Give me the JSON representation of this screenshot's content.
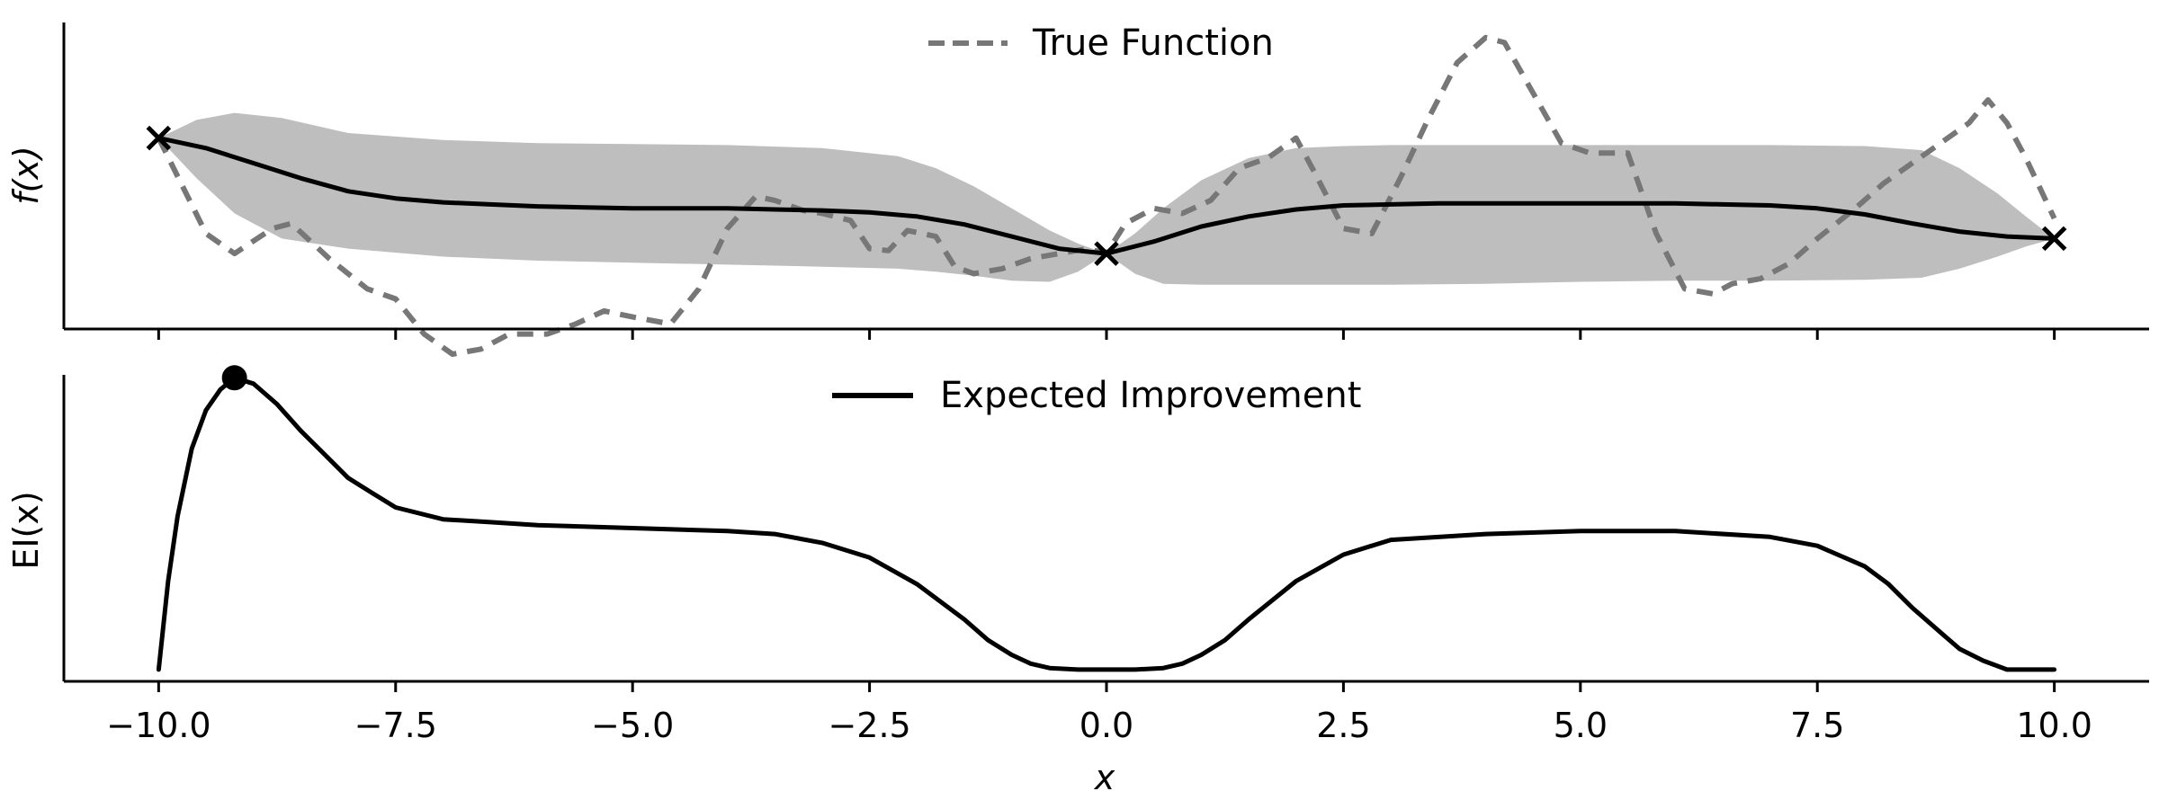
{
  "chart_data": [
    {
      "type": "line",
      "panel": "top",
      "ylabel": "f(x)",
      "xlim": [
        -11.0,
        11.0
      ],
      "ylim": [
        -1.9,
        1.15
      ],
      "xticks": [
        -10.0,
        -7.5,
        -5.0,
        -2.5,
        0.0,
        2.5,
        5.0,
        7.5,
        10.0
      ],
      "xtick_labels_shown": false,
      "yticks_shown": false,
      "legend": {
        "position": "top-center",
        "entries": [
          "True Function"
        ]
      },
      "series": [
        {
          "name": "True Function",
          "style": "dashed",
          "color": "#777777",
          "x": [
            -10.0,
            -9.5,
            -9.2,
            -8.8,
            -8.6,
            -8.2,
            -7.8,
            -7.5,
            -7.2,
            -6.9,
            -6.6,
            -6.3,
            -5.9,
            -5.6,
            -5.3,
            -5.0,
            -4.6,
            -4.3,
            -4.0,
            -3.7,
            -3.5,
            -3.2,
            -3.0,
            -2.7,
            -2.5,
            -2.3,
            -2.1,
            -1.8,
            -1.6,
            -1.4,
            -1.1,
            -0.8,
            -0.5,
            -0.2,
            0.0,
            0.2,
            0.5,
            0.8,
            1.1,
            1.4,
            1.7,
            2.0,
            2.2,
            2.5,
            2.8,
            3.1,
            3.4,
            3.7,
            4.0,
            4.2,
            4.5,
            4.8,
            5.1,
            5.5,
            5.8,
            6.1,
            6.4,
            6.6,
            6.9,
            7.2,
            7.5,
            7.9,
            8.2,
            8.5,
            8.8,
            9.1,
            9.3,
            9.5,
            9.7,
            10.0
          ],
          "y": [
            0.0,
            -0.95,
            -1.15,
            -0.9,
            -0.85,
            -1.2,
            -1.5,
            -1.6,
            -1.95,
            -2.15,
            -2.1,
            -1.95,
            -1.95,
            -1.85,
            -1.72,
            -1.78,
            -1.85,
            -1.5,
            -0.9,
            -0.58,
            -0.62,
            -0.72,
            -0.75,
            -0.82,
            -1.1,
            -1.12,
            -0.92,
            -0.98,
            -1.28,
            -1.35,
            -1.3,
            -1.2,
            -1.15,
            -1.1,
            -1.15,
            -0.85,
            -0.7,
            -0.75,
            -0.62,
            -0.3,
            -0.2,
            0.0,
            -0.35,
            -0.9,
            -0.95,
            -0.4,
            0.2,
            0.75,
            1.0,
            0.95,
            0.45,
            -0.05,
            -0.15,
            -0.15,
            -0.95,
            -1.5,
            -1.55,
            -1.45,
            -1.4,
            -1.25,
            -1.0,
            -0.7,
            -0.45,
            -0.25,
            -0.05,
            0.15,
            0.38,
            0.15,
            -0.2,
            -0.8
          ]
        },
        {
          "name": "",
          "style": "solid",
          "color": "#000000",
          "x": [
            -10.0,
            -9.5,
            -9.0,
            -8.5,
            -8.0,
            -7.5,
            -7.0,
            -6.5,
            -6.0,
            -5.5,
            -5.0,
            -4.5,
            -4.0,
            -3.5,
            -3.0,
            -2.5,
            -2.0,
            -1.5,
            -1.0,
            -0.5,
            0.0,
            0.5,
            1.0,
            1.5,
            2.0,
            2.5,
            3.0,
            3.5,
            4.0,
            4.5,
            5.0,
            5.5,
            6.0,
            6.5,
            7.0,
            7.5,
            8.0,
            8.5,
            9.0,
            9.5,
            10.0
          ],
          "y": [
            0.0,
            -0.1,
            -0.25,
            -0.4,
            -0.53,
            -0.6,
            -0.64,
            -0.66,
            -0.68,
            -0.69,
            -0.7,
            -0.7,
            -0.7,
            -0.71,
            -0.72,
            -0.74,
            -0.78,
            -0.86,
            -0.98,
            -1.1,
            -1.15,
            -1.03,
            -0.88,
            -0.78,
            -0.71,
            -0.67,
            -0.66,
            -0.65,
            -0.65,
            -0.65,
            -0.65,
            -0.65,
            -0.65,
            -0.66,
            -0.67,
            -0.7,
            -0.76,
            -0.85,
            -0.93,
            -0.98,
            -1.0
          ]
        }
      ],
      "band": {
        "color": "#bebebe",
        "x": [
          -10.0,
          -9.6,
          -9.2,
          -8.7,
          -8.0,
          -7.0,
          -6.0,
          -5.0,
          -4.0,
          -3.0,
          -2.2,
          -1.8,
          -1.4,
          -1.0,
          -0.6,
          -0.3,
          0.0,
          0.3,
          0.6,
          1.0,
          1.5,
          2.0,
          2.5,
          3.0,
          4.0,
          5.0,
          6.0,
          7.0,
          8.0,
          8.6,
          9.0,
          9.4,
          9.7,
          10.0
        ],
        "upper": [
          0.0,
          0.18,
          0.25,
          0.2,
          0.05,
          -0.02,
          -0.05,
          -0.06,
          -0.07,
          -0.1,
          -0.18,
          -0.3,
          -0.48,
          -0.7,
          -0.92,
          -1.05,
          -1.15,
          -0.95,
          -0.7,
          -0.42,
          -0.2,
          -0.1,
          -0.08,
          -0.07,
          -0.07,
          -0.07,
          -0.07,
          -0.07,
          -0.08,
          -0.12,
          -0.3,
          -0.55,
          -0.78,
          -1.0
        ],
        "lower": [
          0.0,
          -0.4,
          -0.75,
          -1.0,
          -1.1,
          -1.18,
          -1.22,
          -1.24,
          -1.26,
          -1.28,
          -1.3,
          -1.33,
          -1.37,
          -1.42,
          -1.43,
          -1.33,
          -1.15,
          -1.35,
          -1.45,
          -1.46,
          -1.46,
          -1.46,
          -1.46,
          -1.46,
          -1.45,
          -1.43,
          -1.42,
          -1.42,
          -1.41,
          -1.39,
          -1.3,
          -1.18,
          -1.08,
          -1.0
        ]
      },
      "markers": {
        "type": "x",
        "points": [
          [
            -10.0,
            0.0
          ],
          [
            0.0,
            -1.15
          ],
          [
            10.0,
            -1.0
          ]
        ]
      }
    },
    {
      "type": "line",
      "panel": "bottom",
      "xlabel": "x",
      "ylabel": "EI(x)",
      "xlim": [
        -11.0,
        11.0
      ],
      "ylim": [
        -0.04,
        1.0
      ],
      "xticks": [
        -10.0,
        -7.5,
        -5.0,
        -2.5,
        0.0,
        2.5,
        5.0,
        7.5,
        10.0
      ],
      "xtick_labels": [
        "−10.0",
        "−7.5",
        "−5.0",
        "−2.5",
        "0.0",
        "2.5",
        "5.0",
        "7.5",
        "10.0"
      ],
      "yticks_shown": false,
      "legend": {
        "position": "top-center",
        "entries": [
          "Expected Improvement"
        ]
      },
      "series": [
        {
          "name": "Expected Improvement",
          "style": "solid",
          "color": "#000000",
          "x": [
            -10.0,
            -9.9,
            -9.8,
            -9.65,
            -9.5,
            -9.35,
            -9.2,
            -9.0,
            -8.75,
            -8.5,
            -8.25,
            -8.0,
            -7.75,
            -7.5,
            -7.0,
            -6.5,
            -6.0,
            -5.0,
            -4.0,
            -3.5,
            -3.0,
            -2.5,
            -2.0,
            -1.5,
            -1.25,
            -1.0,
            -0.8,
            -0.6,
            -0.3,
            0.0,
            0.3,
            0.6,
            0.8,
            1.0,
            1.25,
            1.5,
            2.0,
            2.5,
            3.0,
            4.0,
            5.0,
            6.0,
            7.0,
            7.5,
            8.0,
            8.25,
            8.5,
            8.75,
            9.0,
            9.25,
            9.5,
            10.0
          ],
          "y": [
            0.0,
            0.3,
            0.52,
            0.75,
            0.88,
            0.95,
            0.99,
            0.97,
            0.9,
            0.81,
            0.73,
            0.65,
            0.6,
            0.55,
            0.51,
            0.5,
            0.49,
            0.48,
            0.47,
            0.46,
            0.43,
            0.38,
            0.29,
            0.17,
            0.1,
            0.05,
            0.02,
            0.005,
            0.0,
            0.0,
            0.0,
            0.005,
            0.02,
            0.05,
            0.1,
            0.17,
            0.3,
            0.39,
            0.44,
            0.46,
            0.47,
            0.47,
            0.45,
            0.42,
            0.35,
            0.29,
            0.21,
            0.14,
            0.07,
            0.03,
            0.0,
            0.0
          ]
        }
      ],
      "markers": {
        "type": "dot",
        "points": [
          [
            -9.2,
            0.99
          ]
        ]
      }
    }
  ]
}
